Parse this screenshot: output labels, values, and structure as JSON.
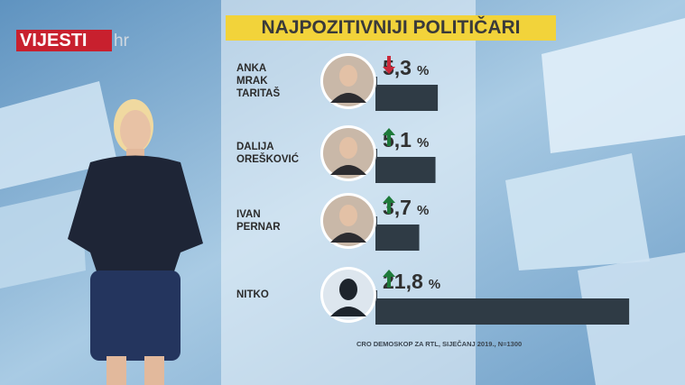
{
  "logo": {
    "name": "VIJESTI",
    "suffix": "hr"
  },
  "chart_data": {
    "type": "bar",
    "orientation": "horizontal",
    "title": "NAJPOZITIVNIJI POLITIČARI",
    "categories": [
      "ANKA\nMRAK\nTARITAŠ",
      "DALIJA\nOREŠKOVIĆ",
      "IVAN\nPERNAR",
      "NITKO"
    ],
    "values": [
      5.3,
      5.1,
      3.7,
      21.8
    ],
    "value_labels": [
      "5,3",
      "5,1",
      "3,7",
      "21,8"
    ],
    "unit": "%",
    "trend": [
      "down",
      "up",
      "up",
      "up"
    ],
    "trend_colors": {
      "up": "#1e7a3a",
      "down": "#c9283a"
    },
    "color": "#2f3b45",
    "source": "CRO DEMOSKOP ZA RTL, SIJEČANJ 2019., N=1300"
  }
}
